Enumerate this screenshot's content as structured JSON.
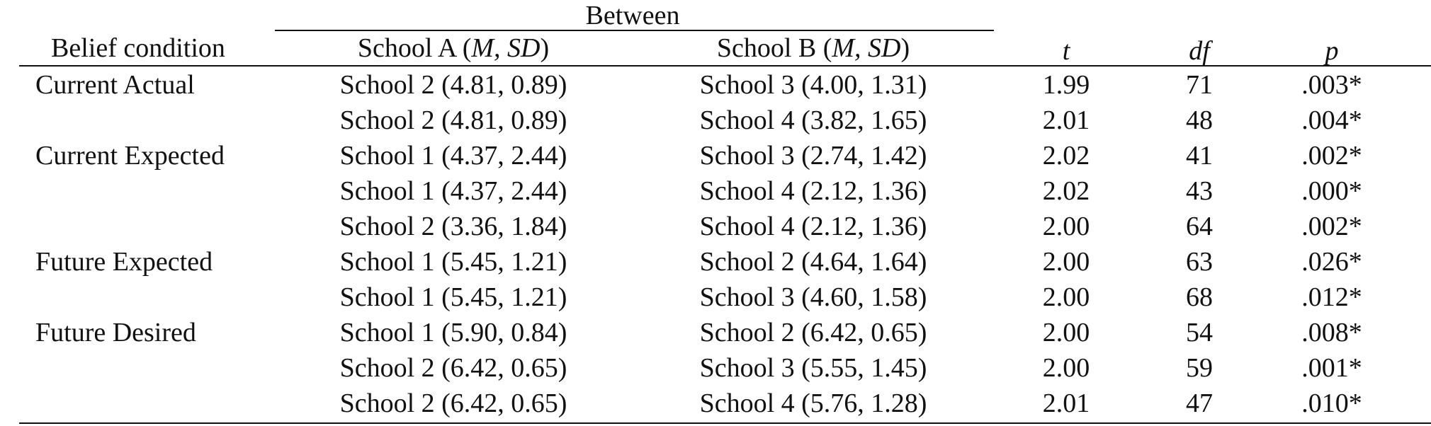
{
  "table": {
    "spanner": "Between",
    "headers": {
      "belief_condition": "Belief condition",
      "school_a_prefix": "School A (",
      "school_a_stats": "M, SD",
      "school_a_suffix": ")",
      "school_b_prefix": "School B (",
      "school_b_stats": "M, SD",
      "school_b_suffix": ")",
      "t": "t",
      "df": "df",
      "p": "p"
    },
    "rows": [
      {
        "condition": "Current Actual",
        "school_a": "School 2 (4.81, 0.89)",
        "school_b": "School 3 (4.00, 1.31)",
        "t": "1.99",
        "df": "71",
        "p": ".003*"
      },
      {
        "condition": "",
        "school_a": "School 2 (4.81, 0.89)",
        "school_b": "School 4 (3.82, 1.65)",
        "t": "2.01",
        "df": "48",
        "p": ".004*"
      },
      {
        "condition": "Current Expected",
        "school_a": "School 1 (4.37, 2.44)",
        "school_b": "School 3 (2.74, 1.42)",
        "t": "2.02",
        "df": "41",
        "p": ".002*"
      },
      {
        "condition": "",
        "school_a": "School 1 (4.37, 2.44)",
        "school_b": "School 4 (2.12, 1.36)",
        "t": "2.02",
        "df": "43",
        "p": ".000*"
      },
      {
        "condition": "",
        "school_a": "School 2 (3.36, 1.84)",
        "school_b": "School 4 (2.12, 1.36)",
        "t": "2.00",
        "df": "64",
        "p": ".002*"
      },
      {
        "condition": "Future Expected",
        "school_a": "School 1 (5.45, 1.21)",
        "school_b": "School 2 (4.64, 1.64)",
        "t": "2.00",
        "df": "63",
        "p": ".026*"
      },
      {
        "condition": "",
        "school_a": "School 1 (5.45, 1.21)",
        "school_b": "School 3 (4.60, 1.58)",
        "t": "2.00",
        "df": "68",
        "p": ".012*"
      },
      {
        "condition": "Future Desired",
        "school_a": "School 1 (5.90, 0.84)",
        "school_b": "School 2 (6.42, 0.65)",
        "t": "2.00",
        "df": "54",
        "p": ".008*"
      },
      {
        "condition": "",
        "school_a": "School 2 (6.42, 0.65)",
        "school_b": "School 3 (5.55, 1.45)",
        "t": "2.00",
        "df": "59",
        "p": ".001*"
      },
      {
        "condition": "",
        "school_a": "School 2 (6.42, 0.65)",
        "school_b": "School 4 (5.76, 1.28)",
        "t": "2.01",
        "df": "47",
        "p": ".010*"
      }
    ]
  }
}
